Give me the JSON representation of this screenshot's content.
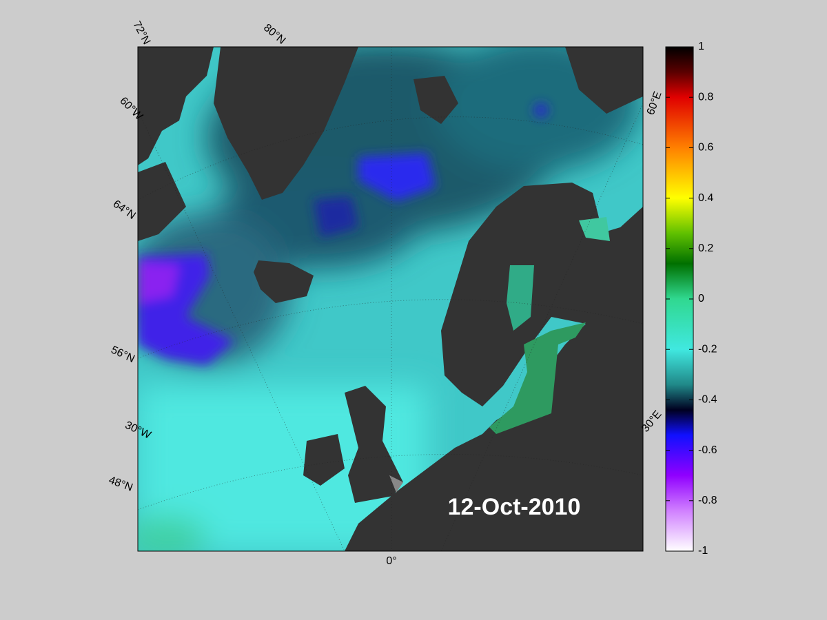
{
  "map": {
    "date": "12-Oct-2010",
    "grid_labels": [
      "72°N",
      "80°N",
      "60°W",
      "64°N",
      "56°N",
      "30°W",
      "48°N",
      "0°",
      "60°E",
      "30°E"
    ]
  },
  "colorbar": {
    "lim": [
      -1,
      1
    ],
    "ticks": [
      1,
      0.8,
      0.6,
      0.4,
      0.2,
      0,
      -0.2,
      -0.4,
      -0.6,
      -0.8,
      -1
    ]
  }
}
